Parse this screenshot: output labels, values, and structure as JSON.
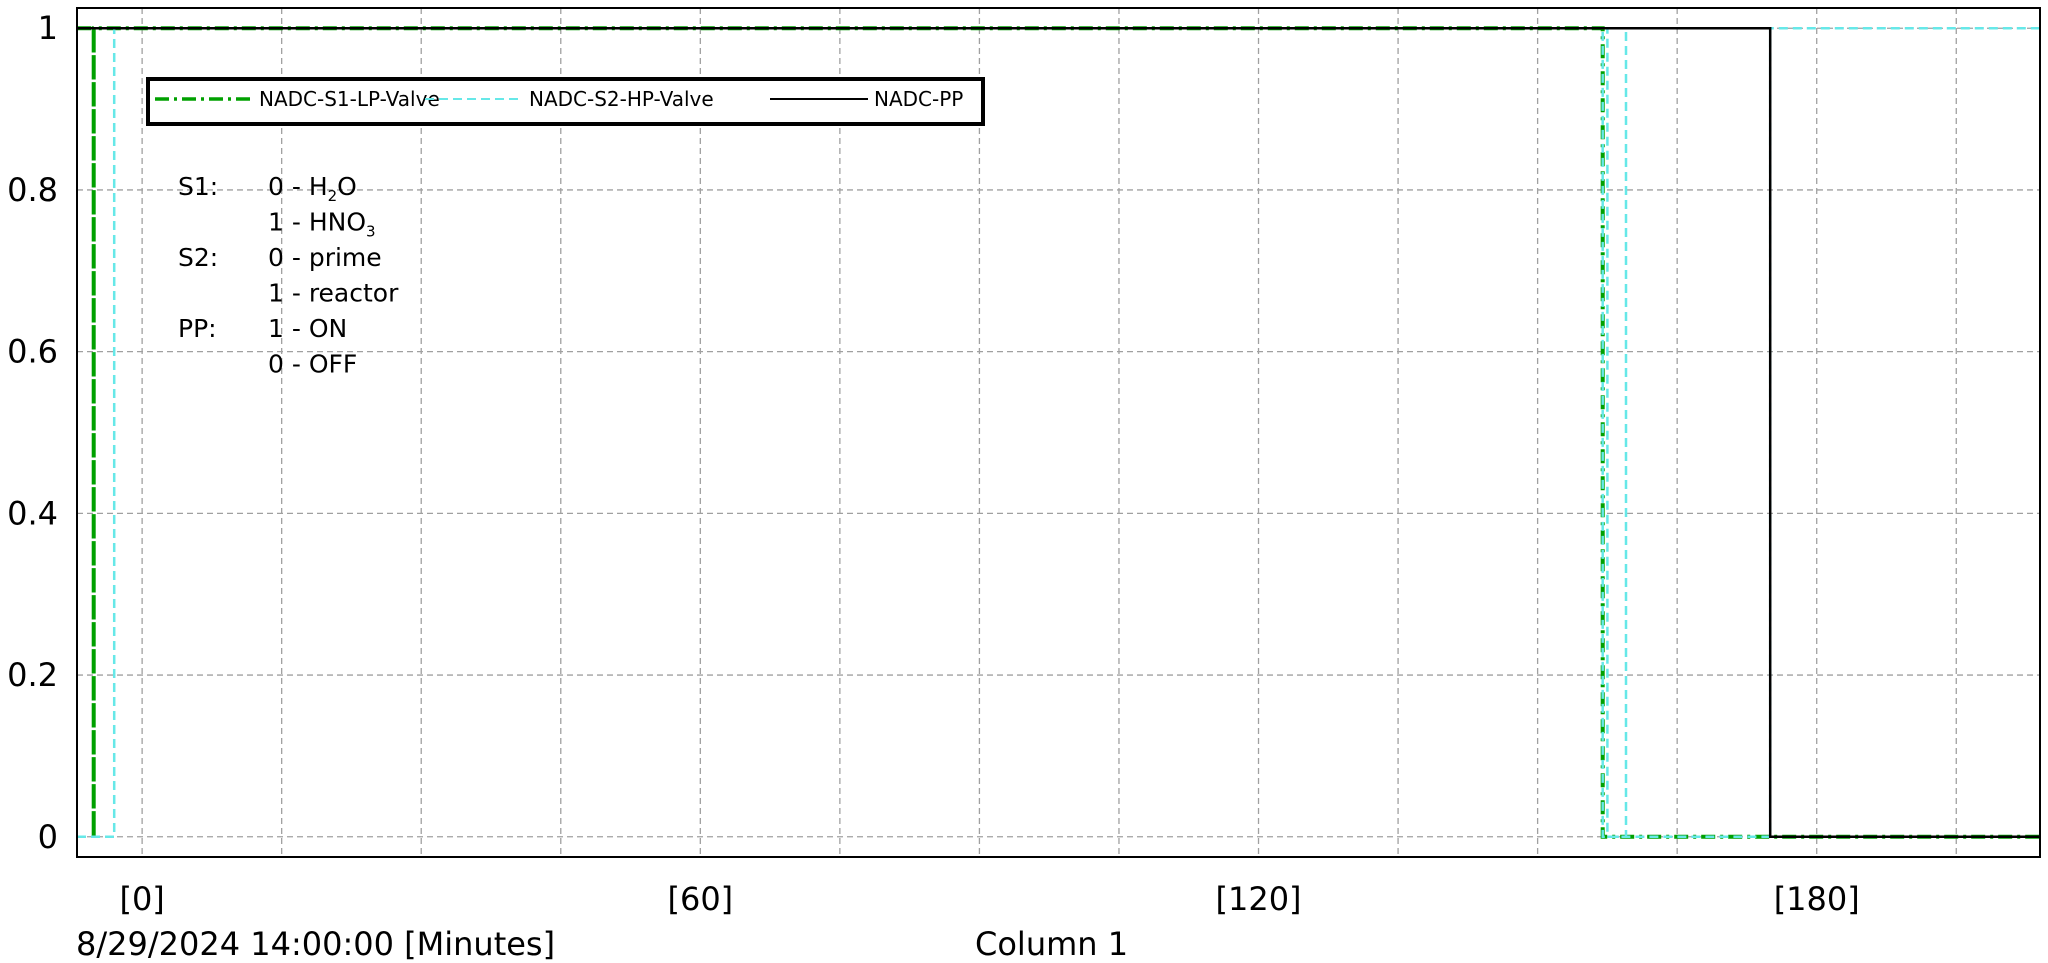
{
  "chart_data": {
    "type": "line",
    "step": true,
    "x_unit": "Minutes",
    "xlim": [
      -7,
      204
    ],
    "ylim": [
      -0.025,
      1.025
    ],
    "grid": true,
    "legend_position": "top-left",
    "x_ticks": [
      {
        "value": 0,
        "label": "[0]"
      },
      {
        "value": 60,
        "label": "[60]"
      },
      {
        "value": 120,
        "label": "[120]"
      },
      {
        "value": 180,
        "label": "[180]"
      }
    ],
    "x_minor_gridlines": [
      15,
      30,
      45,
      75,
      90,
      105,
      135,
      150,
      165,
      195
    ],
    "y_ticks": [
      {
        "value": 0,
        "label": "0"
      },
      {
        "value": 0.2,
        "label": "0.2"
      },
      {
        "value": 0.4,
        "label": "0.4"
      },
      {
        "value": 0.6,
        "label": "0.6"
      },
      {
        "value": 0.8,
        "label": "0.8"
      },
      {
        "value": 1,
        "label": "1"
      }
    ],
    "x_start_label": "8/29/2024 14:00:00 [Minutes]",
    "column_label": "Column 1",
    "series": [
      {
        "name": "NADC-S1-LP-Valve",
        "color": "#00a000",
        "style": "dash-dot",
        "points": [
          [
            -7,
            1
          ],
          [
            -5.2,
            1
          ],
          [
            -5.2,
            0
          ],
          [
            -5.2,
            1
          ],
          [
            157,
            1
          ],
          [
            157,
            0
          ],
          [
            204,
            0
          ]
        ]
      },
      {
        "name": "NADC-S2-HP-Valve",
        "color": "#66e8e8",
        "style": "dashed",
        "points": [
          [
            -7,
            0
          ],
          [
            -3,
            0
          ],
          [
            -3,
            1
          ],
          [
            157,
            1
          ],
          [
            157,
            0
          ],
          [
            159.5,
            0
          ],
          [
            159.5,
            1
          ],
          [
            157.5,
            1
          ],
          [
            157.5,
            0
          ],
          [
            175,
            0
          ],
          [
            175,
            1
          ],
          [
            204,
            1
          ]
        ]
      },
      {
        "name": "NADC-PP",
        "color": "#000000",
        "style": "solid",
        "points": [
          [
            -7,
            1
          ],
          [
            175,
            1
          ],
          [
            175,
            0
          ],
          [
            204,
            0
          ]
        ]
      }
    ],
    "annotation": [
      {
        "key": "S1:",
        "items": [
          {
            "code": "0 - H",
            "sub": "2",
            "tail": "O"
          },
          {
            "code": "1 - HNO",
            "sub": "3",
            "tail": ""
          }
        ]
      },
      {
        "key": "S2:",
        "items": [
          {
            "code": "0 - prime",
            "sub": "",
            "tail": ""
          },
          {
            "code": "1 - reactor",
            "sub": "",
            "tail": ""
          }
        ]
      },
      {
        "key": "PP:",
        "items": [
          {
            "code": "1 - ON",
            "sub": "",
            "tail": ""
          },
          {
            "code": "0 - OFF",
            "sub": "",
            "tail": ""
          }
        ]
      }
    ]
  }
}
